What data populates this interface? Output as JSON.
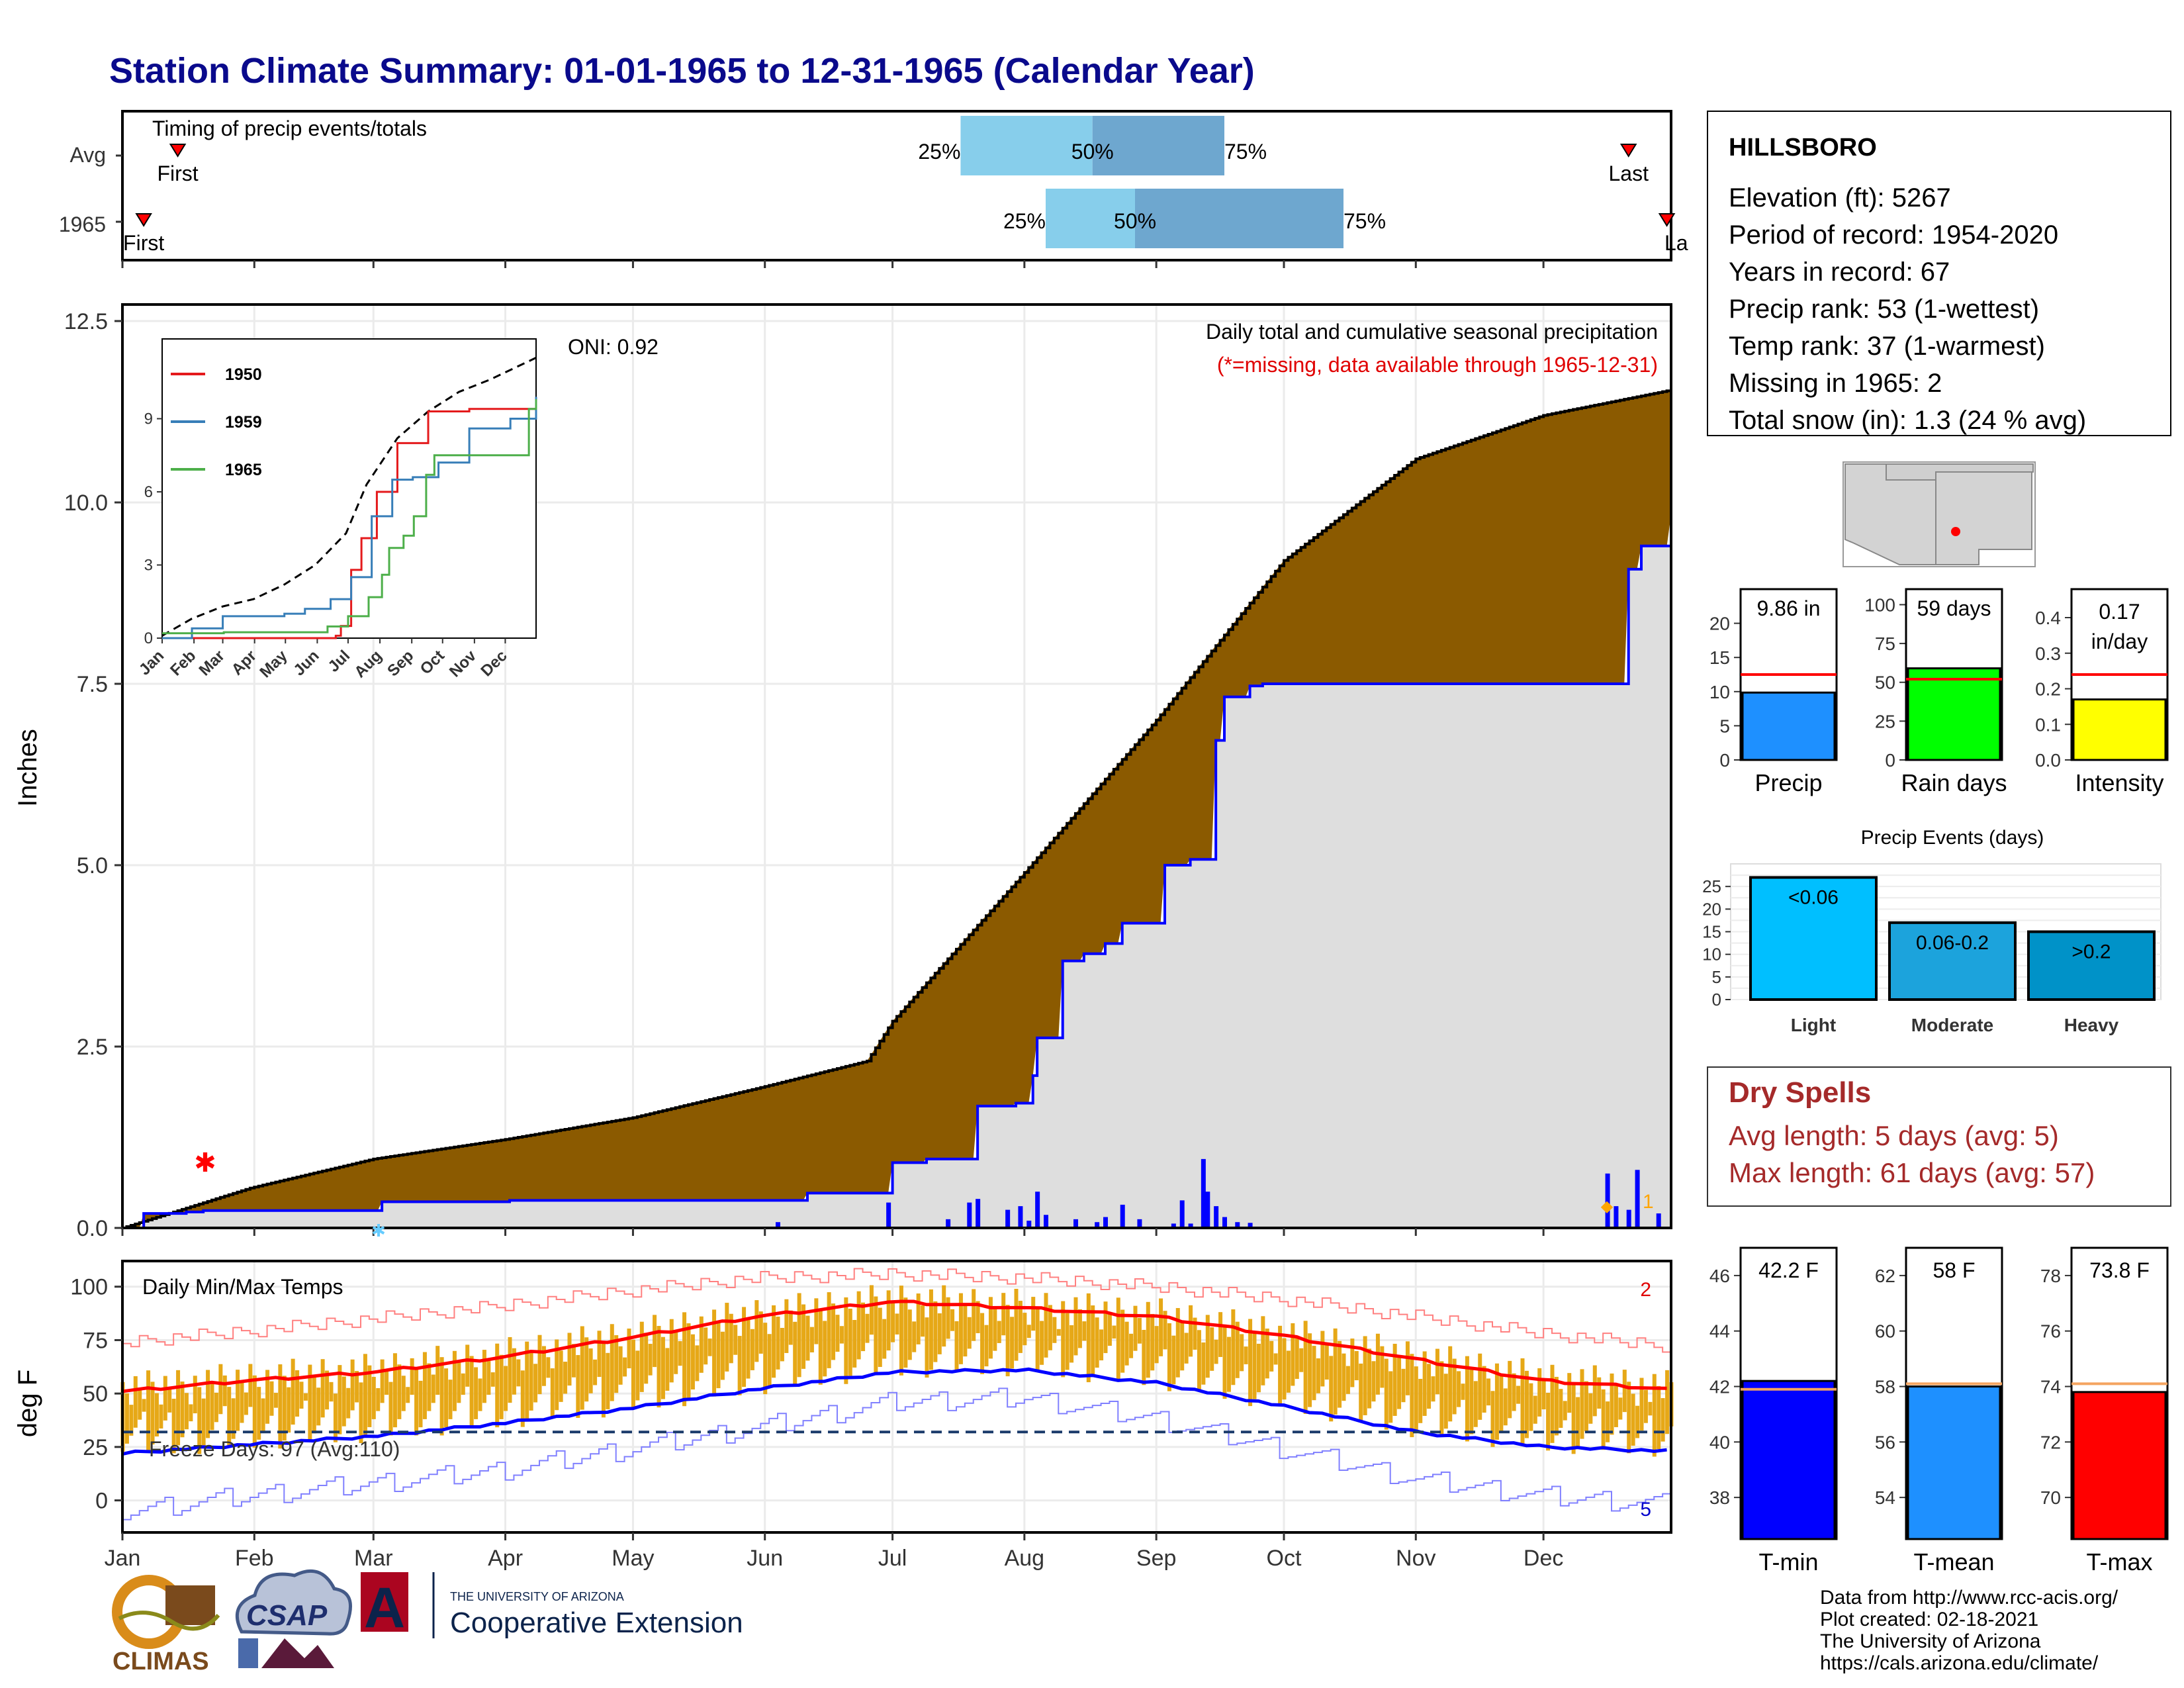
{
  "title": "Station Climate Summary: 01-01-1965 to 12-31-1965 (Calendar Year)",
  "timing": {
    "label": "Timing of precip events/totals",
    "rows": [
      {
        "name": "Avg",
        "first_label": "First",
        "last_label": "Last",
        "first_doy": 14,
        "last_doy": 355,
        "p25": 198,
        "p50": 229,
        "p75": 260,
        "p25_label": "25%",
        "p50_label": "50%",
        "p75_label": "75%"
      },
      {
        "name": "1965",
        "first_label": "First",
        "last_label": "Last",
        "first_doy": 6,
        "last_doy": 364,
        "p25": 218,
        "p50": 239,
        "p75": 288,
        "p25_label": "25%",
        "p50_label": "50%",
        "p75_label": "75%"
      }
    ]
  },
  "main": {
    "ylabel": "Inches",
    "yticks": [
      "0.0",
      "2.5",
      "5.0",
      "7.5",
      "10.0",
      "12.5"
    ],
    "header": "Daily total and cumulative seasonal precipitation",
    "missing_note": "(*=missing, data available through 1965-12-31)",
    "oni": "ONI: 0.92",
    "missing_count": "1"
  },
  "inset": {
    "series": [
      {
        "name": "1950",
        "color": "#e41a1c"
      },
      {
        "name": "1959",
        "color": "#377eb8"
      },
      {
        "name": "1965",
        "color": "#4daf4a"
      }
    ],
    "yticks": [
      "0",
      "3",
      "6",
      "9"
    ],
    "months": [
      "Jan",
      "Feb",
      "Mar",
      "Apr",
      "May",
      "Jun",
      "Jul",
      "Aug",
      "Sep",
      "Oct",
      "Nov",
      "Dec"
    ]
  },
  "temps": {
    "label": "Daily Min/Max Temps",
    "ylabel": "deg F",
    "yticks": [
      "0",
      "25",
      "50",
      "75",
      "100"
    ],
    "freeze": "Freeze Days: 97 (Avg:110)",
    "missing_max": "2",
    "missing_min": "5",
    "months": [
      "Jan",
      "Feb",
      "Mar",
      "Apr",
      "May",
      "Jun",
      "Jul",
      "Aug",
      "Sep",
      "Oct",
      "Nov",
      "Dec"
    ]
  },
  "station": {
    "name": "HILLSBORO",
    "lines": [
      "Elevation (ft): 5267",
      "Period of record: 1954-2020",
      "Years in record: 67",
      "Precip rank: 53 (1-wettest)",
      "Temp rank: 37 (1-warmest)",
      "Missing in 1965: 2",
      "Total snow (in): 1.3 (24 % avg)"
    ]
  },
  "mini_bars": [
    {
      "label": "Precip",
      "value_label": "9.86 in",
      "value": 9.86,
      "avg": 12.5,
      "max": 25,
      "ticks": [
        "0",
        "5",
        "10",
        "15",
        "20"
      ],
      "tickvals": [
        0,
        5,
        10,
        15,
        20
      ],
      "color": "#1e90ff"
    },
    {
      "label": "Rain days",
      "value_label": "59 days",
      "value": 59,
      "avg": 52,
      "max": 110,
      "ticks": [
        "0",
        "25",
        "50",
        "75",
        "100"
      ],
      "tickvals": [
        0,
        25,
        50,
        75,
        100
      ],
      "color": "#00ff00"
    },
    {
      "label": "Intensity",
      "value_label": "0.17 in/day",
      "value": 0.17,
      "avg": 0.24,
      "max": 0.48,
      "ticks": [
        "0.0",
        "0.1",
        "0.2",
        "0.3",
        "0.4"
      ],
      "tickvals": [
        0,
        0.1,
        0.2,
        0.3,
        0.4
      ],
      "color": "#ffff00"
    }
  ],
  "precip_events": {
    "title": "Precip Events (days)",
    "categories": [
      "Light",
      "Moderate",
      "Heavy"
    ],
    "labels": [
      "<0.06",
      "0.06-0.2",
      ">0.2"
    ],
    "values": [
      27,
      17,
      15
    ],
    "colors": [
      "#00bfff",
      "#1ca3dc",
      "#0092c8"
    ],
    "ticks": [
      "0",
      "5",
      "10",
      "15",
      "20",
      "25"
    ]
  },
  "dry_spells": {
    "title": "Dry Spells",
    "avg": "Avg length: 5 days (avg: 5)",
    "max": "Max length: 61 days (avg: 57)"
  },
  "temp_bars": [
    {
      "label": "T-min",
      "value_label": "42.2 F",
      "value": 42.2,
      "avg": 41.9,
      "lo": 36.5,
      "hi": 47,
      "ticks": [
        38,
        40,
        42,
        44,
        46
      ],
      "color": "#0000ff"
    },
    {
      "label": "T-mean",
      "value_label": "58 F",
      "value": 58,
      "avg": 58.1,
      "lo": 52.5,
      "hi": 63,
      "ticks": [
        54,
        56,
        58,
        60,
        62
      ],
      "color": "#1e90ff"
    },
    {
      "label": "T-max",
      "value_label": "73.8 F",
      "value": 73.8,
      "avg": 74.1,
      "lo": 68.5,
      "hi": 79,
      "ticks": [
        70,
        72,
        74,
        76,
        78
      ],
      "color": "#ff0000"
    }
  ],
  "credits": [
    "Data from http://www.rcc-acis.org/",
    "Plot created: 02-18-2021",
    "The University of Arizona",
    "https://cals.arizona.edu/climate/"
  ],
  "logos": {
    "climas": "CLIMAS",
    "csap": "CSAP",
    "ua_small": "THE UNIVERSITY OF ARIZONA",
    "ua_big": "Cooperative Extension"
  },
  "chart_data": {
    "type": "area",
    "title": "Daily total and cumulative seasonal precipitation",
    "ylabel": "Inches",
    "ylim": [
      0,
      12.5
    ],
    "months": [
      "Jan",
      "Feb",
      "Mar",
      "Apr",
      "May",
      "Jun",
      "Jul",
      "Aug",
      "Sep",
      "Oct",
      "Nov",
      "Dec"
    ],
    "cum_avg_doy": [
      1,
      31,
      60,
      91,
      121,
      152,
      176,
      182,
      213,
      244,
      274,
      305,
      335,
      365
    ],
    "cum_avg": [
      0,
      0.55,
      0.95,
      1.22,
      1.52,
      1.95,
      2.3,
      2.85,
      4.9,
      7.0,
      9.2,
      10.6,
      11.2,
      11.55
    ],
    "cum_1965_doy": [
      1,
      6,
      16,
      20,
      61,
      62,
      92,
      161,
      162,
      182,
      190,
      202,
      211,
      215,
      216,
      222,
      227,
      232,
      236,
      246,
      252,
      258,
      260,
      266,
      269,
      349,
      355,
      358,
      365
    ],
    "cum_1965": [
      0,
      0.2,
      0.22,
      0.24,
      0.24,
      0.36,
      0.38,
      0.38,
      0.48,
      0.9,
      0.95,
      1.68,
      1.72,
      2.1,
      2.62,
      3.68,
      3.78,
      3.92,
      4.2,
      5.0,
      5.08,
      6.72,
      7.32,
      7.47,
      7.5,
      7.5,
      9.08,
      9.4,
      9.83
    ],
    "daily_precip_doy": [
      155,
      181,
      195,
      200,
      202,
      209,
      212,
      214,
      216,
      218,
      225,
      230,
      232,
      236,
      240,
      248,
      250,
      252,
      255,
      256,
      258,
      260,
      263,
      266,
      350,
      352,
      355,
      357,
      362
    ],
    "daily_precip": [
      0.08,
      0.35,
      0.12,
      0.35,
      0.4,
      0.25,
      0.3,
      0.1,
      0.5,
      0.18,
      0.12,
      0.08,
      0.15,
      0.32,
      0.12,
      0.06,
      0.38,
      0.06,
      0.95,
      0.5,
      0.3,
      0.15,
      0.08,
      0.07,
      0.75,
      0.3,
      0.25,
      0.8,
      0.2
    ],
    "inset": {
      "ylim": [
        0,
        12
      ],
      "avg_doy": [
        1,
        30,
        60,
        90,
        120,
        150,
        180,
        200,
        230,
        260,
        290,
        320,
        365
      ],
      "avg": [
        0.1,
        0.8,
        1.3,
        1.6,
        2.2,
        3.0,
        4.3,
        6.3,
        8.2,
        9.3,
        10.1,
        10.6,
        11.5
      ],
      "y1950_doy": [
        1,
        170,
        175,
        185,
        195,
        210,
        230,
        260,
        300,
        365
      ],
      "y1950": [
        0,
        0.1,
        0.5,
        2.8,
        4.1,
        6.0,
        8.0,
        9.3,
        9.4,
        9.5
      ],
      "y1959_doy": [
        1,
        30,
        60,
        120,
        140,
        165,
        185,
        205,
        225,
        245,
        270,
        300,
        340,
        365
      ],
      "y1959": [
        0,
        0.4,
        0.9,
        1.0,
        1.2,
        1.6,
        2.5,
        5.0,
        6.5,
        6.6,
        7.2,
        8.6,
        9.0,
        9.9
      ],
      "y1965_doy": [
        1,
        61,
        162,
        182,
        202,
        215,
        222,
        236,
        246,
        258,
        266,
        349,
        358,
        365
      ],
      "y1965": [
        0.2,
        0.24,
        0.48,
        0.9,
        1.68,
        2.6,
        3.7,
        4.2,
        5.0,
        6.7,
        7.5,
        7.5,
        9.4,
        9.8
      ]
    },
    "temps": {
      "ylim": [
        -15,
        112
      ],
      "freeze_line": 32,
      "avg_max_doy": [
        1,
        30,
        60,
        90,
        120,
        150,
        182,
        213,
        244,
        274,
        305,
        335,
        365
      ],
      "avg_max": [
        51,
        56,
        60,
        67,
        76,
        86,
        93,
        90,
        86,
        77,
        66,
        56,
        52
      ],
      "avg_min": [
        22,
        26,
        30,
        36,
        43,
        52,
        60,
        61,
        55,
        44,
        32,
        25,
        23
      ],
      "rec_max": [
        74,
        79,
        85,
        91,
        98,
        104,
        106,
        104,
        100,
        94,
        86,
        78,
        72
      ],
      "rec_min": [
        -5,
        2,
        8,
        14,
        24,
        34,
        46,
        48,
        38,
        24,
        10,
        2,
        -2
      ]
    }
  }
}
